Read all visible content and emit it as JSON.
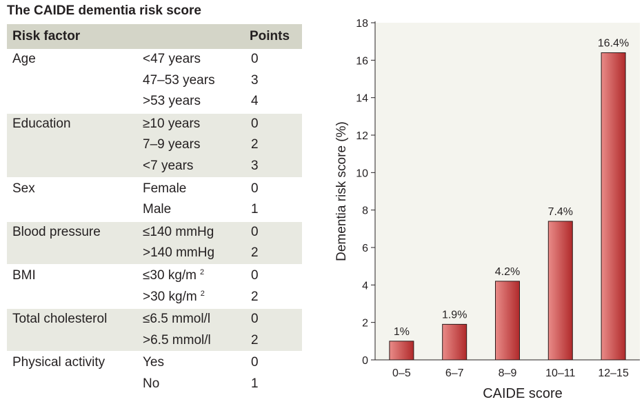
{
  "table": {
    "title": "The CAIDE dementia risk score",
    "header": {
      "factor": "Risk factor",
      "points": "Points"
    },
    "groups": [
      {
        "factor": "Age",
        "rows": [
          {
            "level": "<47 years",
            "points": "0"
          },
          {
            "level": "47–53 years",
            "points": "3"
          },
          {
            "level": ">53 years",
            "points": "4"
          }
        ]
      },
      {
        "factor": "Education",
        "rows": [
          {
            "level": "≥10 years",
            "points": "0"
          },
          {
            "level": "7–9 years",
            "points": "2"
          },
          {
            "level": "<7 years",
            "points": "3"
          }
        ]
      },
      {
        "factor": "Sex",
        "rows": [
          {
            "level": "Female",
            "points": "0"
          },
          {
            "level": "Male",
            "points": "1"
          }
        ]
      },
      {
        "factor": "Blood pressure",
        "rows": [
          {
            "level": "≤140 mmHg",
            "points": "0"
          },
          {
            "level": ">140 mmHg",
            "points": "2"
          }
        ]
      },
      {
        "factor": "BMI",
        "rows": [
          {
            "level": "≤30 kg/m",
            "sup": "2",
            "points": "0"
          },
          {
            "level": ">30 kg/m",
            "sup": "2",
            "points": "2"
          }
        ]
      },
      {
        "factor": "Total cholesterol",
        "rows": [
          {
            "level": "≤6.5 mmol/l",
            "points": "0"
          },
          {
            "level": ">6.5 mmol/l",
            "points": "2"
          }
        ]
      },
      {
        "factor": "Physical activity",
        "rows": [
          {
            "level": "Yes",
            "points": "0"
          },
          {
            "level": "No",
            "points": "1"
          }
        ]
      }
    ]
  },
  "chart_data": {
    "type": "bar",
    "categories": [
      "0–5",
      "6–7",
      "8–9",
      "10–11",
      "12–15"
    ],
    "values": [
      1,
      1.9,
      4.2,
      7.4,
      16.4
    ],
    "data_labels": [
      "1%",
      "1.9%",
      "4.2%",
      "7.4%",
      "16.4%"
    ],
    "xlabel": "CAIDE score",
    "ylabel": "Dementia risk score (%)",
    "ylim": [
      0,
      18
    ],
    "yticks": [
      0,
      2,
      4,
      6,
      8,
      10,
      12,
      14,
      16,
      18
    ],
    "grid": false,
    "colors": {
      "bar_light": "#e98b88",
      "bar_dark": "#b02a2b",
      "panel": "#f4f4ee",
      "outline": "#2a1a1a"
    }
  }
}
